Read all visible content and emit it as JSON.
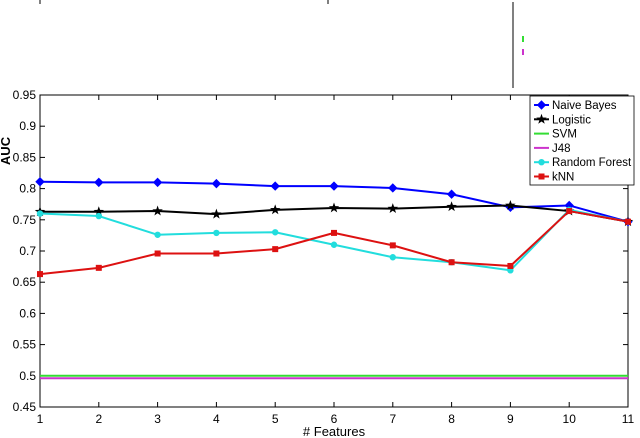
{
  "chart_data": {
    "type": "line",
    "xlabel": "# Features",
    "ylabel": "AUC",
    "x": [
      1,
      2,
      3,
      4,
      5,
      6,
      7,
      8,
      9,
      10,
      11
    ],
    "xlim": [
      1,
      11
    ],
    "ylim": [
      0.45,
      0.95
    ],
    "xticks": [
      "1",
      "2",
      "3",
      "4",
      "5",
      "6",
      "7",
      "8",
      "9",
      "10",
      "11"
    ],
    "yticks": [
      "0.45",
      "0.5",
      "0.55",
      "0.6",
      "0.65",
      "0.7",
      "0.75",
      "0.8",
      "0.85",
      "0.9",
      "0.95"
    ],
    "grid": false,
    "legend_position": "top-right",
    "series": [
      {
        "name": "Naive Bayes",
        "color": "#0000ff",
        "marker": "diamond",
        "x": [
          1,
          2,
          3,
          4,
          5,
          6,
          7,
          8,
          9,
          10,
          11
        ],
        "values": [
          0.811,
          0.81,
          0.81,
          0.808,
          0.804,
          0.804,
          0.801,
          0.791,
          0.77,
          0.773,
          0.747
        ]
      },
      {
        "name": "Logistic",
        "color": "#000000",
        "marker": "star",
        "x": [
          1,
          2,
          3,
          4,
          5,
          6,
          7,
          8,
          9,
          10,
          11
        ],
        "values": [
          0.763,
          0.763,
          0.764,
          0.759,
          0.766,
          0.769,
          0.768,
          0.771,
          0.773,
          0.764,
          0.747
        ]
      },
      {
        "name": "SVM",
        "color": "#33dd33",
        "marker": "none",
        "x": [
          1,
          2,
          3,
          4,
          5,
          6,
          7,
          8,
          9,
          10,
          11
        ],
        "values": [
          0.5,
          0.5,
          0.5,
          0.5,
          0.5,
          0.5,
          0.5,
          0.5,
          0.5,
          0.5,
          0.5
        ]
      },
      {
        "name": "J48",
        "color": "#cc33cc",
        "marker": "none",
        "x": [
          1,
          2,
          3,
          4,
          5,
          6,
          7,
          8,
          9,
          10,
          11
        ],
        "values": [
          0.496,
          0.496,
          0.496,
          0.496,
          0.496,
          0.496,
          0.496,
          0.496,
          0.496,
          0.496,
          0.496
        ]
      },
      {
        "name": "Random Forest",
        "color": "#22dddd",
        "marker": "circle",
        "x": [
          1,
          2,
          3,
          4,
          5,
          6,
          7,
          8,
          9,
          10,
          11
        ],
        "values": [
          0.76,
          0.756,
          0.726,
          0.729,
          0.73,
          0.71,
          0.69,
          0.682,
          0.669,
          0.766,
          0.747
        ]
      },
      {
        "name": "kNN",
        "color": "#dd1111",
        "marker": "square",
        "x": [
          1,
          2,
          3,
          4,
          5,
          6,
          7,
          8,
          9,
          10,
          11
        ],
        "values": [
          0.663,
          0.673,
          0.696,
          0.696,
          0.703,
          0.729,
          0.709,
          0.682,
          0.676,
          0.764,
          0.747
        ]
      }
    ]
  }
}
